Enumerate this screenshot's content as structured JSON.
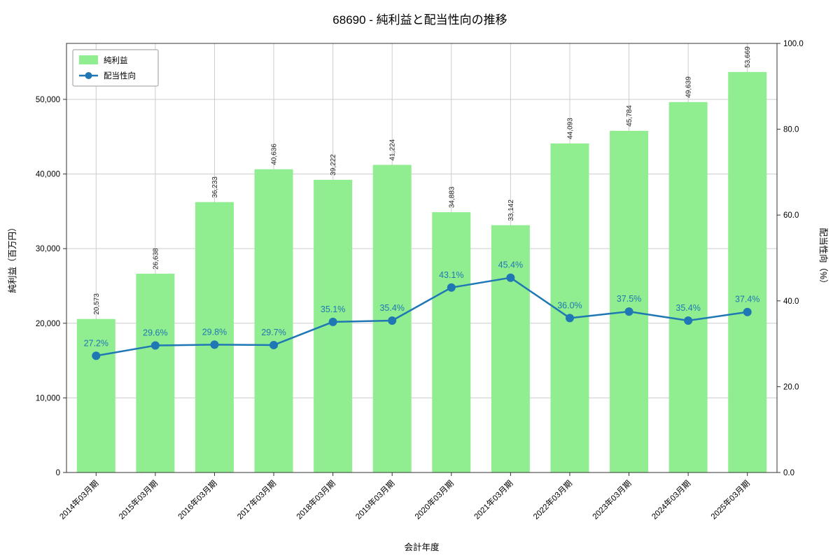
{
  "title": "68690 - 純利益と配当性向の推移",
  "chart_data": {
    "type": "bar",
    "categories": [
      "2014年03月期",
      "2015年03月期",
      "2016年03月期",
      "2017年03月期",
      "2018年03月期",
      "2019年03月期",
      "2020年03月期",
      "2021年03月期",
      "2022年03月期",
      "2023年03月期",
      "2024年03月期",
      "2025年03月期"
    ],
    "series": [
      {
        "name": "純利益",
        "type": "bar",
        "axis": "left",
        "color": "#90ee90",
        "values": [
          20573,
          26638,
          36233,
          40636,
          39222,
          41224,
          34883,
          33142,
          44093,
          45784,
          49639,
          53669
        ]
      },
      {
        "name": "配当性向",
        "type": "line",
        "axis": "right",
        "color": "#1f77b4",
        "values": [
          27.2,
          29.6,
          29.8,
          29.7,
          35.1,
          35.4,
          43.1,
          45.4,
          36.0,
          37.5,
          35.4,
          37.4
        ]
      }
    ],
    "xlabel": "会計年度",
    "ylabel_left": "純利益（百万円）",
    "ylabel_right": "配当性向（%）",
    "ylim_left": [
      0,
      57500
    ],
    "ylim_right": [
      0,
      100
    ],
    "yticks_left": [
      0,
      10000,
      20000,
      30000,
      40000,
      50000
    ],
    "yticks_right": [
      0.0,
      20.0,
      40.0,
      60.0,
      80.0,
      100.0
    ],
    "grid": true,
    "legend_position": "upper left",
    "colors": {
      "grid": "#cccccc",
      "spine": "#333333",
      "bar_label": "#222222",
      "tick_label": "#000000"
    }
  }
}
